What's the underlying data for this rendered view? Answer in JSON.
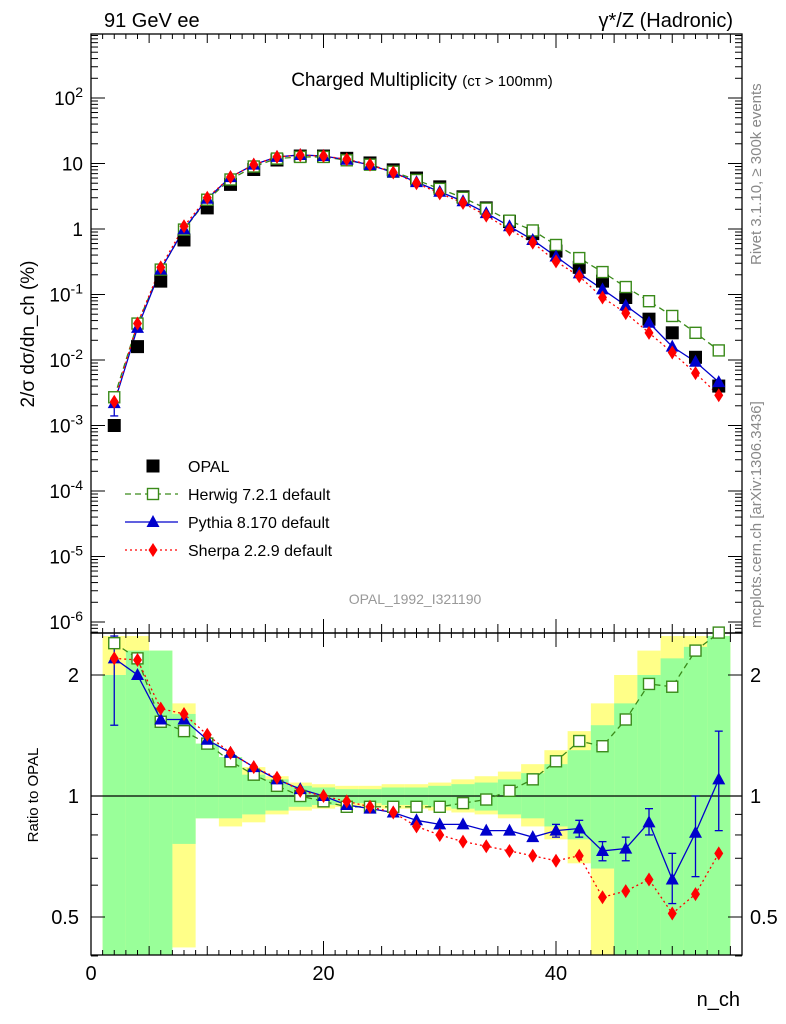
{
  "header": {
    "left": "91 GeV ee",
    "right": "γ*/Z (Hadronic)"
  },
  "side_labels": {
    "rivet": "Rivet 3.1.10, ≥ 300k events",
    "mcplots": "mcplots.cern.ch [arXiv:1306.3436]"
  },
  "chart_data": [
    {
      "type": "scatter",
      "panel": "main",
      "title": "Charged Multiplicity",
      "title_suffix": "(cτ > 100mm)",
      "ylabel": "2/σ dσ/dn_ch (%)",
      "yscale": "log",
      "ylim": [
        5e-07,
        1000
      ],
      "xlim": [
        0,
        56
      ],
      "y_tick_labels": [
        "10^-6",
        "10^-5",
        "10^-4",
        "10^-3",
        "10^-2",
        "10^-1",
        "1",
        "10",
        "10^2"
      ],
      "watermark": "OPAL_1992_I321190",
      "legend_position": "bottom-left",
      "x": [
        2,
        4,
        6,
        8,
        10,
        12,
        14,
        16,
        18,
        20,
        22,
        24,
        26,
        28,
        30,
        32,
        34,
        36,
        38,
        40,
        42,
        44,
        46,
        48,
        50,
        52,
        54
      ],
      "series": [
        {
          "name": "OPAL",
          "color": "#000000",
          "marker": "filled-square",
          "values": [
            0.001,
            0.016,
            0.16,
            0.68,
            2.1,
            4.8,
            8.1,
            11.3,
            13.0,
            13.0,
            12.0,
            10.2,
            8.0,
            6.0,
            4.4,
            3.1,
            2.1,
            1.3,
            0.85,
            0.46,
            0.26,
            0.16,
            0.09,
            0.042,
            0.026,
            0.011,
            0.004
          ]
        },
        {
          "name": "Herwig 7.2.1 default",
          "color": "#3a8a1a",
          "marker": "open-square",
          "line": "dashed",
          "values": [
            0.0027,
            0.036,
            0.24,
            0.98,
            2.8,
            5.7,
            9.0,
            11.9,
            12.6,
            12.6,
            11.2,
            9.6,
            7.5,
            5.6,
            4.1,
            3.0,
            2.05,
            1.34,
            0.95,
            0.57,
            0.36,
            0.22,
            0.13,
            0.079,
            0.047,
            0.026,
            0.014
          ]
        },
        {
          "name": "Pythia 8.170 default",
          "color": "#0000cc",
          "marker": "filled-triangle",
          "line": "solid",
          "values": [
            0.0022,
            0.031,
            0.24,
            0.99,
            2.9,
            6.2,
            9.6,
            12.6,
            13.5,
            13.0,
            11.4,
            9.5,
            7.3,
            5.2,
            3.7,
            2.65,
            1.75,
            1.1,
            0.68,
            0.38,
            0.21,
            0.12,
            0.068,
            0.037,
            0.016,
            0.0094,
            0.0046
          ]
        },
        {
          "name": "Sherpa 2.2.9 default",
          "color": "#ff0000",
          "marker": "filled-diamond",
          "line": "dotted",
          "values": [
            0.0023,
            0.036,
            0.26,
            1.1,
            3.0,
            6.2,
            9.6,
            12.6,
            13.4,
            13.0,
            11.6,
            9.6,
            7.3,
            5.0,
            3.5,
            2.5,
            1.6,
            0.98,
            0.62,
            0.32,
            0.19,
            0.09,
            0.052,
            0.026,
            0.013,
            0.0063,
            0.0029
          ]
        }
      ],
      "error_bars": {
        "Pythia 8.170 default": {
          "x": 2,
          "low": 0.0014,
          "high": 0.003
        }
      }
    },
    {
      "type": "line",
      "panel": "ratio",
      "ylabel": "Ratio to OPAL",
      "xlabel": "n_ch",
      "ylim": [
        0.35,
        2.5
      ],
      "xlim": [
        0,
        56
      ],
      "y_ticks": [
        "0.5",
        "1",
        "2"
      ],
      "x_ticks": [
        "0",
        "20",
        "40"
      ],
      "reference_line": 1,
      "x": [
        2,
        4,
        6,
        8,
        10,
        12,
        14,
        16,
        18,
        20,
        22,
        24,
        26,
        28,
        30,
        32,
        34,
        36,
        38,
        40,
        42,
        44,
        46,
        48,
        50,
        52,
        54
      ],
      "series": [
        {
          "name": "Herwig 7.2.1 default",
          "color": "#3a8a1a",
          "marker": "open-square",
          "line": "dashed",
          "values": [
            2.4,
            2.2,
            1.53,
            1.45,
            1.35,
            1.22,
            1.13,
            1.06,
            1.0,
            0.97,
            0.94,
            0.94,
            0.94,
            0.94,
            0.94,
            0.96,
            0.98,
            1.03,
            1.1,
            1.22,
            1.37,
            1.33,
            1.55,
            1.9,
            1.87,
            2.3,
            2.55
          ]
        },
        {
          "name": "Pythia 8.170 default",
          "color": "#0000cc",
          "marker": "filled-triangle",
          "line": "solid",
          "values": [
            2.2,
            2.0,
            1.55,
            1.55,
            1.38,
            1.28,
            1.18,
            1.1,
            1.04,
            1.0,
            0.95,
            0.93,
            0.91,
            0.87,
            0.85,
            0.85,
            0.82,
            0.82,
            0.79,
            0.82,
            0.83,
            0.73,
            0.74,
            0.86,
            0.62,
            0.81,
            1.1
          ]
        },
        {
          "name": "Sherpa 2.2.9 default",
          "color": "#ff0000",
          "marker": "filled-diamond",
          "line": "dotted",
          "values": [
            2.2,
            2.18,
            1.65,
            1.6,
            1.42,
            1.28,
            1.18,
            1.11,
            1.03,
            1.0,
            0.97,
            0.94,
            0.91,
            0.84,
            0.8,
            0.77,
            0.75,
            0.73,
            0.71,
            0.69,
            0.71,
            0.56,
            0.58,
            0.62,
            0.51,
            0.57,
            0.72
          ]
        }
      ],
      "error_bars": {
        "Pythia 8.170 default": [
          {
            "x": 2,
            "low": 1.5,
            "high": 2.5
          },
          {
            "x": 40,
            "low": 0.79,
            "high": 0.85
          },
          {
            "x": 42,
            "low": 0.79,
            "high": 0.87
          },
          {
            "x": 44,
            "low": 0.69,
            "high": 0.77
          },
          {
            "x": 46,
            "low": 0.69,
            "high": 0.79
          },
          {
            "x": 48,
            "low": 0.8,
            "high": 0.93
          },
          {
            "x": 50,
            "low": 0.54,
            "high": 0.72
          },
          {
            "x": 52,
            "low": 0.63,
            "high": 1.0
          },
          {
            "x": 54,
            "low": 0.82,
            "high": 1.45
          }
        ]
      },
      "bands": {
        "inner_color": "#99ff99",
        "outer_color": "#ffff88",
        "bins": [
          {
            "x0": 1,
            "x1": 3,
            "inner": [
              0.35,
              2.0
            ],
            "outer": [
              0.35,
              2.5
            ]
          },
          {
            "x0": 3,
            "x1": 5,
            "inner": [
              0.35,
              2.3
            ],
            "outer": [
              0.35,
              2.5
            ]
          },
          {
            "x0": 5,
            "x1": 7,
            "inner": [
              0.35,
              2.3
            ],
            "outer": [
              0.35,
              2.3
            ]
          },
          {
            "x0": 7,
            "x1": 9,
            "inner": [
              0.76,
              1.6
            ],
            "outer": [
              0.42,
              1.7
            ]
          },
          {
            "x0": 9,
            "x1": 11,
            "inner": [
              0.88,
              1.35
            ],
            "outer": [
              0.88,
              1.35
            ]
          },
          {
            "x0": 11,
            "x1": 13,
            "inner": [
              0.88,
              1.25
            ],
            "outer": [
              0.84,
              1.25
            ]
          },
          {
            "x0": 13,
            "x1": 15,
            "inner": [
              0.9,
              1.13
            ],
            "outer": [
              0.86,
              1.18
            ]
          },
          {
            "x0": 15,
            "x1": 17,
            "inner": [
              0.92,
              1.1
            ],
            "outer": [
              0.9,
              1.12
            ]
          },
          {
            "x0": 17,
            "x1": 19,
            "inner": [
              0.94,
              1.06
            ],
            "outer": [
              0.92,
              1.08
            ]
          },
          {
            "x0": 19,
            "x1": 21,
            "inner": [
              0.95,
              1.05
            ],
            "outer": [
              0.93,
              1.07
            ]
          },
          {
            "x0": 21,
            "x1": 23,
            "inner": [
              0.96,
              1.04
            ],
            "outer": [
              0.94,
              1.06
            ]
          },
          {
            "x0": 23,
            "x1": 25,
            "inner": [
              0.96,
              1.04
            ],
            "outer": [
              0.94,
              1.06
            ]
          },
          {
            "x0": 25,
            "x1": 27,
            "inner": [
              0.95,
              1.05
            ],
            "outer": [
              0.93,
              1.07
            ]
          },
          {
            "x0": 27,
            "x1": 29,
            "inner": [
              0.95,
              1.05
            ],
            "outer": [
              0.93,
              1.07
            ]
          },
          {
            "x0": 29,
            "x1": 31,
            "inner": [
              0.94,
              1.06
            ],
            "outer": [
              0.92,
              1.08
            ]
          },
          {
            "x0": 31,
            "x1": 33,
            "inner": [
              0.93,
              1.07
            ],
            "outer": [
              0.91,
              1.1
            ]
          },
          {
            "x0": 33,
            "x1": 35,
            "inner": [
              0.92,
              1.08
            ],
            "outer": [
              0.9,
              1.12
            ]
          },
          {
            "x0": 35,
            "x1": 37,
            "inner": [
              0.9,
              1.1
            ],
            "outer": [
              0.88,
              1.15
            ]
          },
          {
            "x0": 37,
            "x1": 39,
            "inner": [
              0.88,
              1.14
            ],
            "outer": [
              0.84,
              1.2
            ]
          },
          {
            "x0": 39,
            "x1": 41,
            "inner": [
              0.84,
              1.2
            ],
            "outer": [
              0.78,
              1.3
            ]
          },
          {
            "x0": 41,
            "x1": 43,
            "inner": [
              0.78,
              1.3
            ],
            "outer": [
              0.68,
              1.45
            ]
          },
          {
            "x0": 43,
            "x1": 45,
            "inner": [
              0.66,
              1.5
            ],
            "outer": [
              0.35,
              1.7
            ]
          },
          {
            "x0": 45,
            "x1": 47,
            "inner": [
              0.35,
              1.7
            ],
            "outer": [
              0.35,
              2.0
            ]
          },
          {
            "x0": 47,
            "x1": 49,
            "inner": [
              0.35,
              2.0
            ],
            "outer": [
              0.35,
              2.3
            ]
          },
          {
            "x0": 49,
            "x1": 51,
            "inner": [
              0.35,
              2.2
            ],
            "outer": [
              0.35,
              2.5
            ]
          },
          {
            "x0": 51,
            "x1": 53,
            "inner": [
              0.4,
              2.35
            ],
            "outer": [
              0.4,
              2.5
            ]
          },
          {
            "x0": 53,
            "x1": 55,
            "inner": [
              0.4,
              2.5
            ],
            "outer": [
              0.4,
              2.5
            ]
          }
        ]
      }
    }
  ]
}
